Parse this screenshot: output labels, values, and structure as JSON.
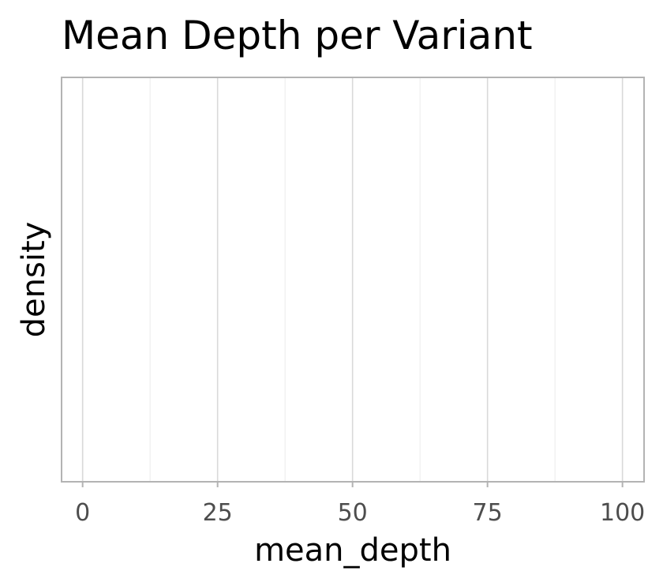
{
  "chart_data": {
    "type": "area",
    "title": "Mean Depth per Variant",
    "xlabel": "mean_depth",
    "ylabel": "density",
    "xlim": [
      -3.9,
      104
    ],
    "x_ticks": [
      0,
      25,
      50,
      75,
      100
    ],
    "x_tick_labels": [
      "0",
      "25",
      "50",
      "75",
      "100"
    ],
    "x_minor_ticks": [
      12.5,
      37.5,
      62.5,
      87.5
    ],
    "y_ticks": [],
    "series": [],
    "grid": true,
    "legend": "none"
  }
}
